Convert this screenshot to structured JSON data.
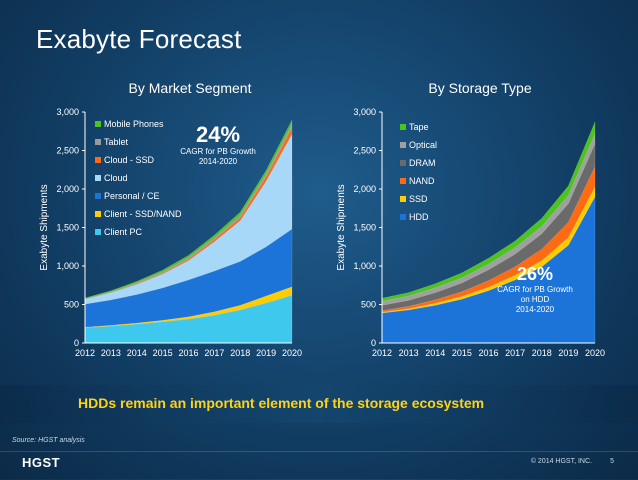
{
  "slide": {
    "title": "Exabyte Forecast",
    "banner": "HDDs remain an important element of the storage ecosystem",
    "source": "Source: HGST analysis",
    "logo": "HGST",
    "copyright": "© 2014 HGST, INC.",
    "page": "5"
  },
  "chart_data": [
    {
      "type": "area",
      "stacked": true,
      "title": "By Market Segment",
      "ylabel": "Exabyte Shipments",
      "xlabel": "",
      "ylim": [
        0,
        3000
      ],
      "yticks": [
        "0",
        "500",
        "1,000",
        "1,500",
        "2,000",
        "2,500",
        "3,000"
      ],
      "x": [
        "2012",
        "2013",
        "2014",
        "2015",
        "2016",
        "2017",
        "2018",
        "2019",
        "2020"
      ],
      "legend_position": "top-left",
      "series": [
        {
          "name": "Client PC",
          "color": "#3fc8ee",
          "values": [
            200,
            220,
            245,
            275,
            310,
            360,
            430,
            520,
            620
          ]
        },
        {
          "name": "Client - SSD/NAND",
          "color": "#ffcc00",
          "values": [
            5,
            10,
            15,
            20,
            30,
            45,
            60,
            90,
            110
          ]
        },
        {
          "name": "Personal / CE",
          "color": "#1c74d8",
          "values": [
            300,
            330,
            370,
            420,
            480,
            530,
            570,
            640,
            750
          ]
        },
        {
          "name": "Cloud",
          "color": "#a7d8f7",
          "values": [
            60,
            90,
            130,
            180,
            250,
            380,
            530,
            850,
            1230
          ]
        },
        {
          "name": "Cloud - SSD",
          "color": "#ff6a13",
          "values": [
            3,
            5,
            8,
            12,
            18,
            26,
            40,
            60,
            90
          ]
        },
        {
          "name": "Tablet",
          "color": "#9a9a9a",
          "values": [
            5,
            8,
            12,
            15,
            20,
            25,
            30,
            35,
            40
          ]
        },
        {
          "name": "Mobile Phones",
          "color": "#4cc41e",
          "values": [
            12,
            15,
            20,
            25,
            30,
            35,
            40,
            45,
            55
          ]
        }
      ],
      "annotation": {
        "value": "24%",
        "text": [
          "CAGR for PB Growth",
          "2014-2020"
        ]
      }
    },
    {
      "type": "area",
      "stacked": true,
      "title": "By Storage Type",
      "ylabel": "Exabyte Shipments",
      "xlabel": "",
      "ylim": [
        0,
        3000
      ],
      "yticks": [
        "0",
        "500",
        "1,000",
        "1,500",
        "2,000",
        "2,500",
        "3,000"
      ],
      "x": [
        "2012",
        "2013",
        "2014",
        "2015",
        "2016",
        "2017",
        "2018",
        "2019",
        "2020"
      ],
      "legend_position": "top-left",
      "series": [
        {
          "name": "HDD",
          "color": "#1c74d8",
          "values": [
            390,
            430,
            490,
            570,
            680,
            820,
            990,
            1270,
            1900
          ]
        },
        {
          "name": "SSD",
          "color": "#ffcc00",
          "values": [
            10,
            15,
            25,
            35,
            45,
            60,
            80,
            100,
            130
          ]
        },
        {
          "name": "NAND",
          "color": "#ff6a13",
          "values": [
            20,
            30,
            45,
            60,
            85,
            110,
            150,
            200,
            260
          ]
        },
        {
          "name": "DRAM",
          "color": "#6a6a6a",
          "values": [
            70,
            80,
            95,
            115,
            140,
            165,
            200,
            240,
            300
          ]
        },
        {
          "name": "Optical",
          "color": "#a0a0a0",
          "values": [
            50,
            55,
            60,
            65,
            75,
            85,
            95,
            110,
            130
          ]
        },
        {
          "name": "Tape",
          "color": "#4cc41e",
          "values": [
            40,
            45,
            55,
            65,
            75,
            85,
            105,
            120,
            150
          ]
        }
      ],
      "annotation": {
        "value": "26%",
        "text": [
          "CAGR for PB Growth",
          "on HDD",
          "2014-2020"
        ]
      }
    }
  ]
}
